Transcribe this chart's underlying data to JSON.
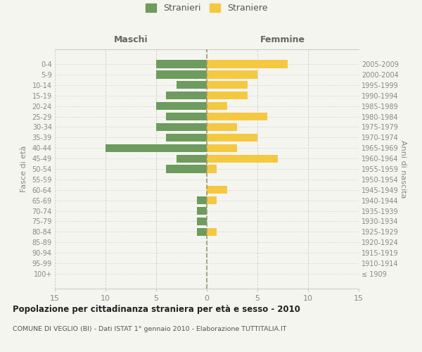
{
  "age_groups": [
    "100+",
    "95-99",
    "90-94",
    "85-89",
    "80-84",
    "75-79",
    "70-74",
    "65-69",
    "60-64",
    "55-59",
    "50-54",
    "45-49",
    "40-44",
    "35-39",
    "30-34",
    "25-29",
    "20-24",
    "15-19",
    "10-14",
    "5-9",
    "0-4"
  ],
  "birth_years": [
    "≤ 1909",
    "1910-1914",
    "1915-1919",
    "1920-1924",
    "1925-1929",
    "1930-1934",
    "1935-1939",
    "1940-1944",
    "1945-1949",
    "1950-1954",
    "1955-1959",
    "1960-1964",
    "1965-1969",
    "1970-1974",
    "1975-1979",
    "1980-1984",
    "1985-1989",
    "1990-1994",
    "1995-1999",
    "2000-2004",
    "2005-2009"
  ],
  "maschi": [
    0,
    0,
    0,
    0,
    1,
    1,
    1,
    1,
    0,
    0,
    4,
    3,
    10,
    4,
    5,
    4,
    5,
    4,
    3,
    5,
    5
  ],
  "femmine": [
    0,
    0,
    0,
    0,
    1,
    0,
    0,
    1,
    2,
    0,
    1,
    7,
    3,
    5,
    3,
    6,
    2,
    4,
    4,
    5,
    8
  ],
  "maschi_color": "#6e9b5e",
  "femmine_color": "#f5c842",
  "title": "Popolazione per cittadinanza straniera per età e sesso - 2010",
  "subtitle": "COMUNE DI VEGLIO (BI) - Dati ISTAT 1° gennaio 2010 - Elaborazione TUTTITALIA.IT",
  "ylabel_left": "Fasce di età",
  "ylabel_right": "Anni di nascita",
  "header_left": "Maschi",
  "header_right": "Femmine",
  "legend_stranieri": "Stranieri",
  "legend_straniere": "Straniere",
  "xlim": 15,
  "background_color": "#f5f5f0",
  "grid_color": "#cccccc",
  "text_color": "#888888"
}
